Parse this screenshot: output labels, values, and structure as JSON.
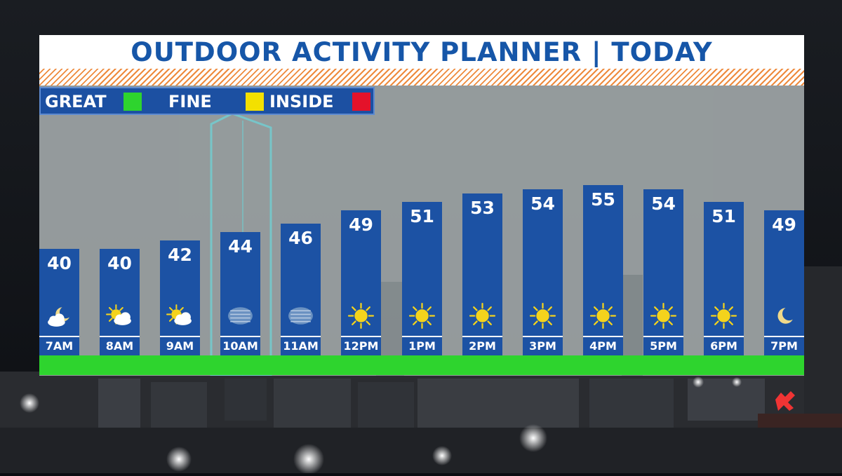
{
  "title": "OUTDOOR ACTIVITY PLANNER | TODAY",
  "legend": {
    "great": "GREAT",
    "fine": "FINE",
    "inside": "INSIDE",
    "colors": {
      "great": "#2ed42e",
      "fine": "#f3e000",
      "inside": "#e4122a"
    }
  },
  "colors": {
    "bar": "#1c52a4",
    "title": "#1656a8",
    "stripe": "#ee8a3c"
  },
  "chart_data": {
    "type": "bar",
    "categories": [
      "7AM",
      "8AM",
      "9AM",
      "10AM",
      "11AM",
      "12PM",
      "1PM",
      "2PM",
      "3PM",
      "4PM",
      "5PM",
      "6PM",
      "7PM"
    ],
    "values": [
      40,
      40,
      42,
      44,
      46,
      49,
      51,
      53,
      54,
      55,
      54,
      51,
      49
    ],
    "value_labels": [
      "40",
      "40",
      "42",
      "44",
      "46",
      "49",
      "51",
      "53",
      "54",
      "55",
      "54",
      "51",
      "49"
    ],
    "icons": [
      "moon-cloud-icon",
      "sun-cloud-icon",
      "sun-cloud-icon",
      "fog-icon",
      "fog-icon",
      "sun-icon",
      "sun-icon",
      "sun-icon",
      "sun-icon",
      "sun-icon",
      "sun-icon",
      "sun-icon",
      "moon-icon"
    ],
    "activity_rating": [
      "GREAT",
      "GREAT",
      "GREAT",
      "GREAT",
      "GREAT",
      "GREAT",
      "GREAT",
      "GREAT",
      "GREAT",
      "GREAT",
      "GREAT",
      "GREAT",
      "GREAT"
    ]
  }
}
